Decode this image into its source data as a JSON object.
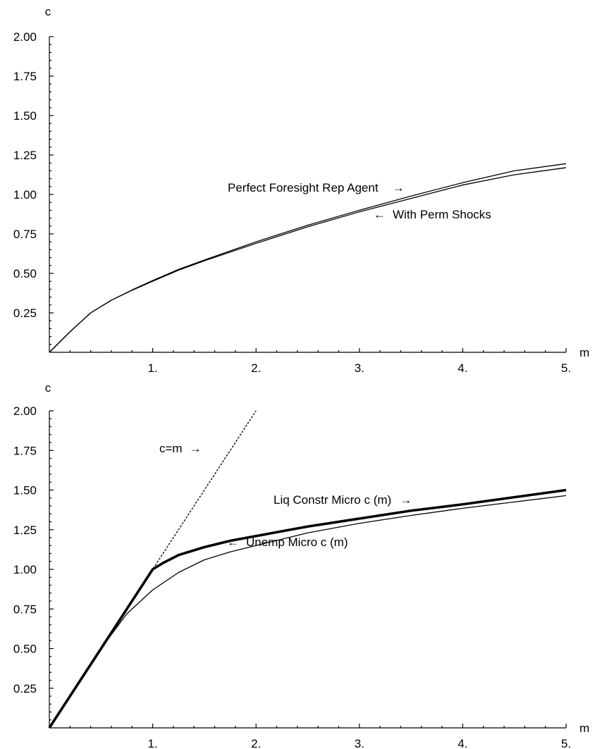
{
  "chart_data": [
    {
      "type": "line",
      "xlabel": "m",
      "ylabel": "c",
      "xlim": [
        0,
        5
      ],
      "ylim": [
        0,
        2
      ],
      "x_ticks": [
        1,
        2,
        3,
        4,
        5
      ],
      "x_tick_labels": [
        "1.",
        "2.",
        "3.",
        "4.",
        "5."
      ],
      "y_ticks": [
        0.25,
        0.5,
        0.75,
        1.0,
        1.25,
        1.5,
        1.75,
        2.0
      ],
      "y_tick_labels": [
        "0.25",
        "0.50",
        "0.75",
        "1.00",
        "1.25",
        "1.50",
        "1.75",
        "2.00"
      ],
      "grid": false,
      "series": [
        {
          "name": "Perfect Foresight Rep Agent",
          "width": "thin",
          "x": [
            0,
            0.2,
            0.4,
            0.6,
            0.8,
            1.0,
            1.25,
            1.5,
            2.0,
            2.5,
            3.0,
            3.5,
            4.0,
            4.5,
            5.0
          ],
          "y": [
            0,
            0.13,
            0.25,
            0.33,
            0.395,
            0.455,
            0.525,
            0.585,
            0.7,
            0.805,
            0.9,
            0.99,
            1.075,
            1.15,
            1.195
          ]
        },
        {
          "name": "With Perm Shocks",
          "width": "thin",
          "x": [
            0,
            0.2,
            0.4,
            0.6,
            0.8,
            1.0,
            1.25,
            1.5,
            2.0,
            2.5,
            3.0,
            3.5,
            4.0,
            4.5,
            5.0
          ],
          "y": [
            0,
            0.13,
            0.25,
            0.33,
            0.393,
            0.45,
            0.52,
            0.58,
            0.69,
            0.795,
            0.89,
            0.975,
            1.06,
            1.125,
            1.17
          ]
        }
      ],
      "annotations": [
        {
          "text": "Perfect Foresight Rep Agent",
          "arrow": "→"
        },
        {
          "arrow": "←",
          "text": "With Perm Shocks"
        }
      ]
    },
    {
      "type": "line",
      "xlabel": "m",
      "ylabel": "c",
      "xlim": [
        0,
        5
      ],
      "ylim": [
        0,
        2
      ],
      "x_ticks": [
        1,
        2,
        3,
        4,
        5
      ],
      "x_tick_labels": [
        "1.",
        "2.",
        "3.",
        "4.",
        "5."
      ],
      "y_ticks": [
        0.25,
        0.5,
        0.75,
        1.0,
        1.25,
        1.5,
        1.75,
        2.0
      ],
      "y_tick_labels": [
        "0.25",
        "0.50",
        "0.75",
        "1.00",
        "1.25",
        "1.50",
        "1.75",
        "2.00"
      ],
      "grid": false,
      "series": [
        {
          "name": "c=m",
          "style": "dashed",
          "width": "thin",
          "x": [
            0,
            2
          ],
          "y": [
            0,
            2
          ]
        },
        {
          "name": "Liq Constr Micro c (m)",
          "width": "thick",
          "x": [
            0,
            1.0,
            1.1,
            1.25,
            1.5,
            1.75,
            2.0,
            2.5,
            3.0,
            3.5,
            4.0,
            4.5,
            5.0
          ],
          "y": [
            0,
            1.0,
            1.04,
            1.09,
            1.14,
            1.18,
            1.21,
            1.27,
            1.32,
            1.37,
            1.41,
            1.455,
            1.5
          ]
        },
        {
          "name": "Unemp Micro c (m)",
          "width": "thin",
          "x": [
            0,
            0.25,
            0.5,
            0.75,
            1.0,
            1.25,
            1.5,
            1.75,
            2.0,
            2.5,
            3.0,
            3.5,
            4.0,
            4.5,
            5.0
          ],
          "y": [
            0,
            0.25,
            0.5,
            0.72,
            0.87,
            0.98,
            1.06,
            1.11,
            1.15,
            1.23,
            1.29,
            1.34,
            1.385,
            1.425,
            1.465
          ]
        }
      ],
      "annotations": [
        {
          "text": "c=m",
          "arrow": "→"
        },
        {
          "text": "Liq Constr Micro c (m)",
          "arrow": "→"
        },
        {
          "arrow": "←",
          "text": "Unemp Micro c (m)"
        }
      ]
    }
  ]
}
